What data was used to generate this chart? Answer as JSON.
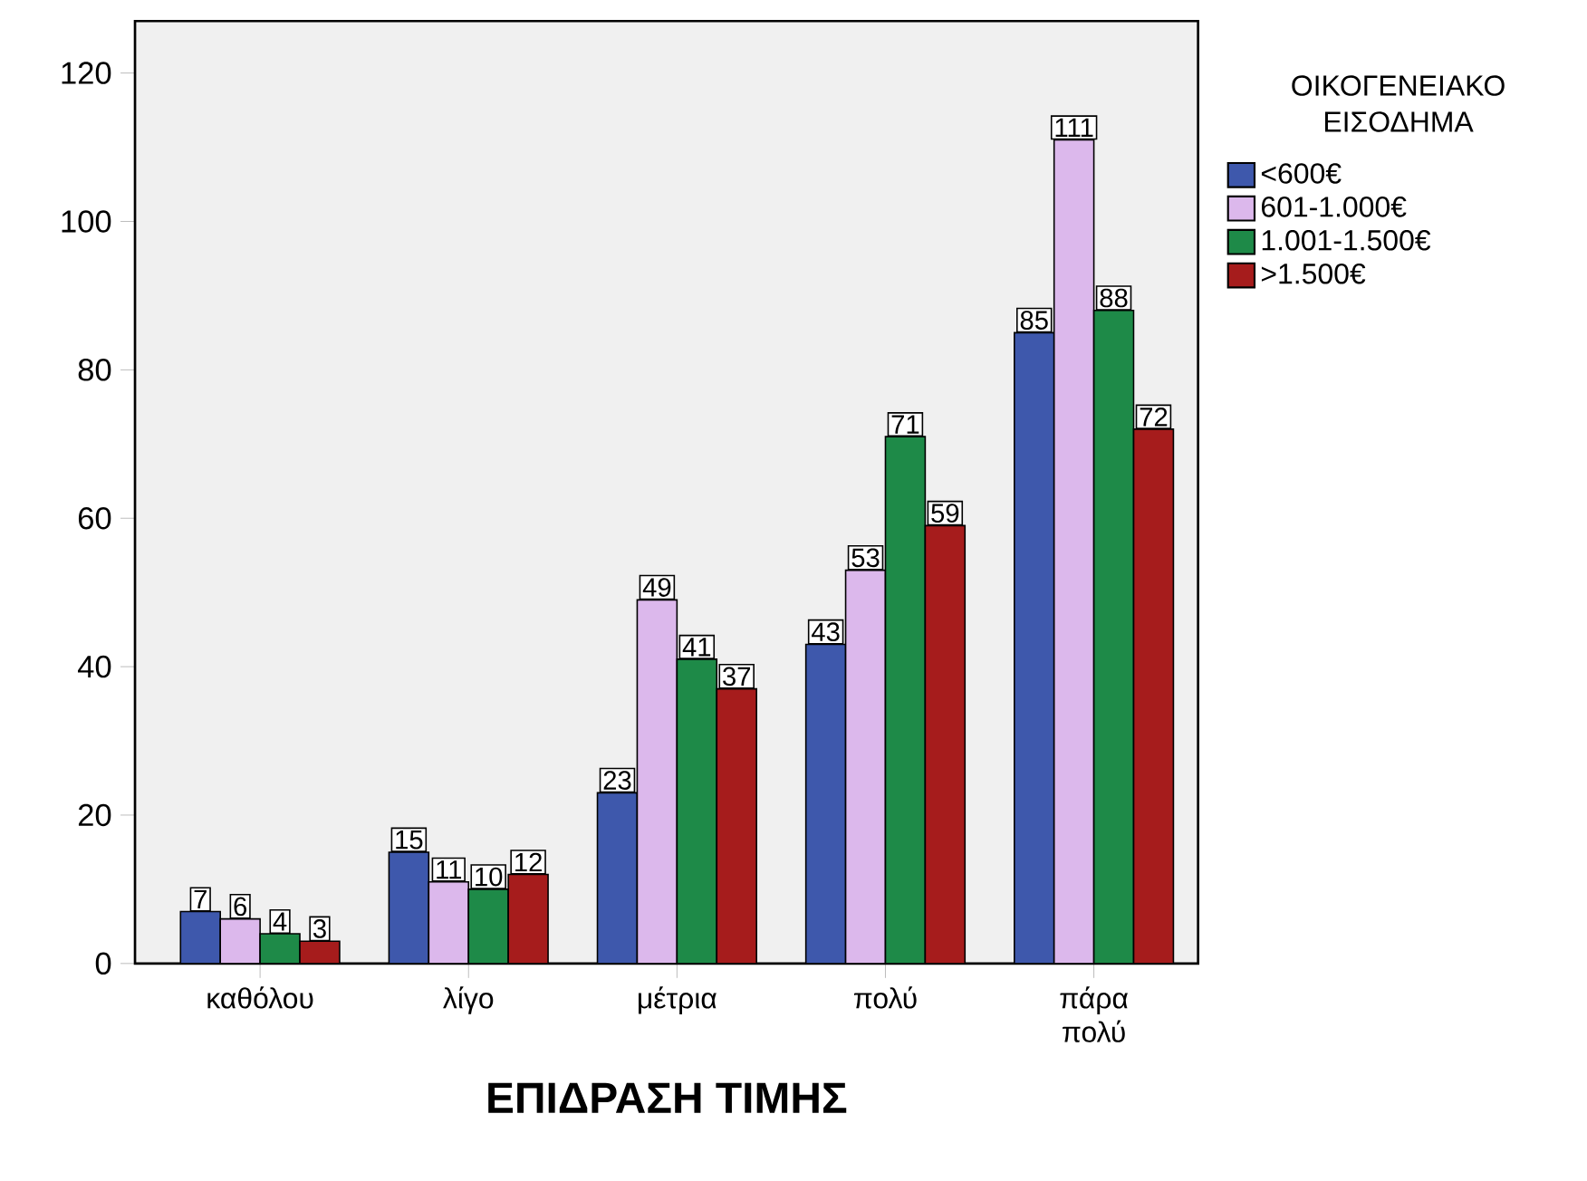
{
  "chart_data": {
    "type": "bar",
    "xlabel": "ΕΠΙΔΡΑΣΗ ΤΙΜΗΣ",
    "legend_title": "ΟΙΚΟΓΕΝΕΙΑΚΟ ΕΙΣΟΔΗΜΑ",
    "categories": [
      "καθόλου",
      "λίγο",
      "μέτρια",
      "πολύ",
      "πάρα πολύ"
    ],
    "series": [
      {
        "name": "<600€",
        "color": "#3e58ac",
        "values": [
          7,
          15,
          23,
          43,
          85
        ]
      },
      {
        "name": "601-1.000€",
        "color": "#dcb8ec",
        "values": [
          6,
          11,
          49,
          53,
          111
        ]
      },
      {
        "name": "1.001-1.500€",
        "color": "#1e8a48",
        "values": [
          4,
          10,
          41,
          71,
          88
        ]
      },
      {
        "name": ">1.500€",
        "color": "#a61c1c",
        "values": [
          3,
          12,
          37,
          59,
          72
        ]
      }
    ],
    "ylim": [
      0,
      127
    ],
    "yticks": [
      0,
      20,
      40,
      60,
      80,
      100,
      120
    ],
    "data_labels": true,
    "legend": "right",
    "grid": false
  }
}
